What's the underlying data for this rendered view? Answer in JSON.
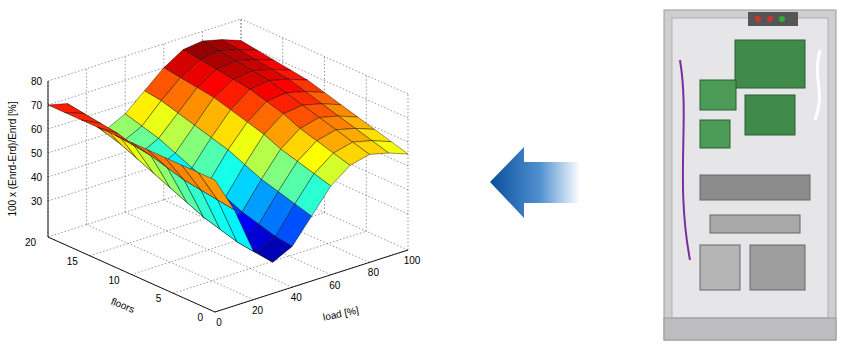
{
  "chart_data": {
    "type": "surface",
    "x_label": "load [%]",
    "y_label": "floors",
    "z_label": "100 x (Enrd-Erd)/Enrd [%]",
    "x": [
      0,
      10,
      20,
      30,
      40,
      50,
      60,
      70,
      80,
      90,
      100
    ],
    "y": [
      0,
      2,
      4,
      6,
      8,
      10,
      12,
      14,
      16,
      18,
      20
    ],
    "z": [
      [
        70,
        55,
        35,
        28,
        32,
        42,
        52,
        58,
        60,
        58,
        55
      ],
      [
        70,
        56,
        36,
        29,
        33,
        44,
        54,
        60,
        62,
        60,
        57
      ],
      [
        70,
        57,
        38,
        31,
        35,
        46,
        56,
        62,
        64,
        62,
        59
      ],
      [
        70,
        58,
        40,
        33,
        37,
        48,
        58,
        64,
        66,
        64,
        61
      ],
      [
        70,
        60,
        43,
        36,
        40,
        51,
        61,
        67,
        68,
        66,
        63
      ],
      [
        70,
        62,
        46,
        39,
        43,
        54,
        63,
        69,
        70,
        68,
        65
      ],
      [
        70,
        63,
        49,
        42,
        46,
        56,
        65,
        71,
        72,
        70,
        67
      ],
      [
        70,
        65,
        52,
        45,
        49,
        58,
        67,
        72,
        73,
        71,
        68
      ],
      [
        70,
        66,
        55,
        48,
        52,
        60,
        68,
        73,
        74,
        72,
        69
      ],
      [
        70,
        67,
        57,
        50,
        54,
        62,
        69,
        74,
        75,
        73,
        70
      ],
      [
        70,
        68,
        59,
        52,
        56,
        63,
        70,
        75,
        76,
        74,
        71
      ]
    ],
    "xlim": [
      0,
      100
    ],
    "ylim": [
      0,
      20
    ],
    "zlim": [
      15,
      80
    ],
    "xticks": [
      0,
      20,
      40,
      60,
      80,
      100
    ],
    "yticks": [
      0,
      5,
      10,
      15,
      20
    ],
    "zticks": [
      30,
      40,
      50,
      60,
      70,
      80
    ],
    "grid": true
  }
}
